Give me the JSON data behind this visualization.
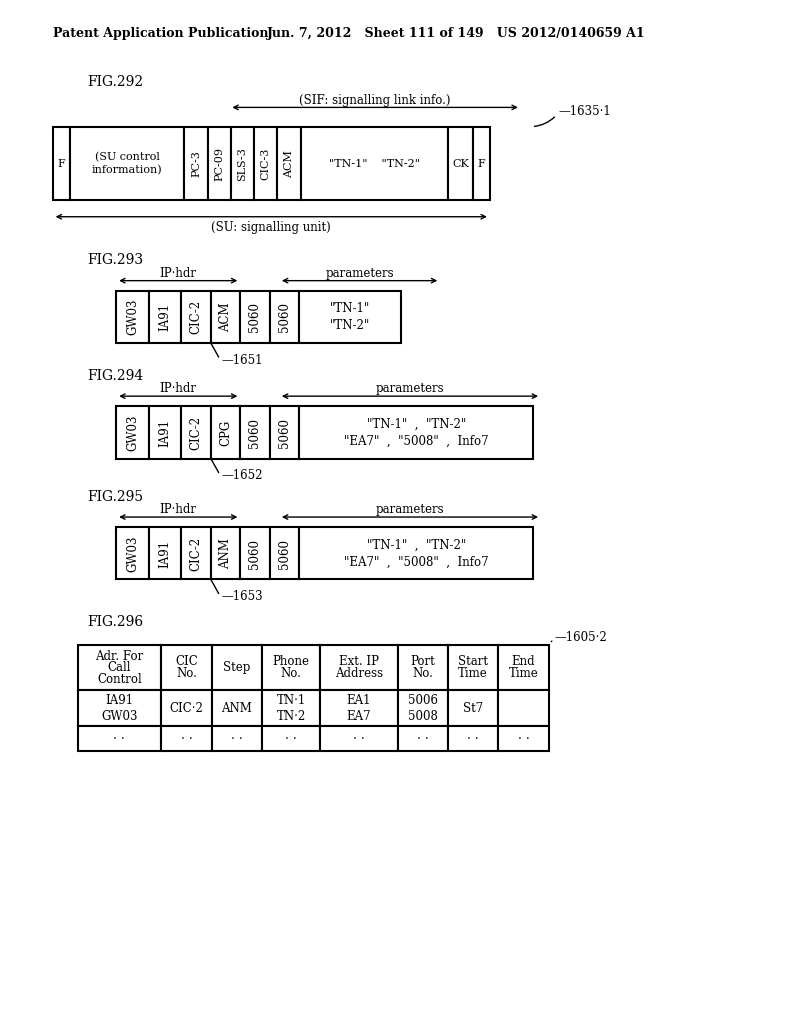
{
  "header_left": "Patent Application Publication",
  "header_center": "Jun. 7, 2012   Sheet 111 of 149   US 2012/0140659 A1",
  "bg_color": "#ffffff",
  "fig292_label": "FIG.292",
  "fig293_label": "FIG.293",
  "fig294_label": "FIG.294",
  "fig295_label": "FIG.295",
  "fig296_label": "FIG.296"
}
